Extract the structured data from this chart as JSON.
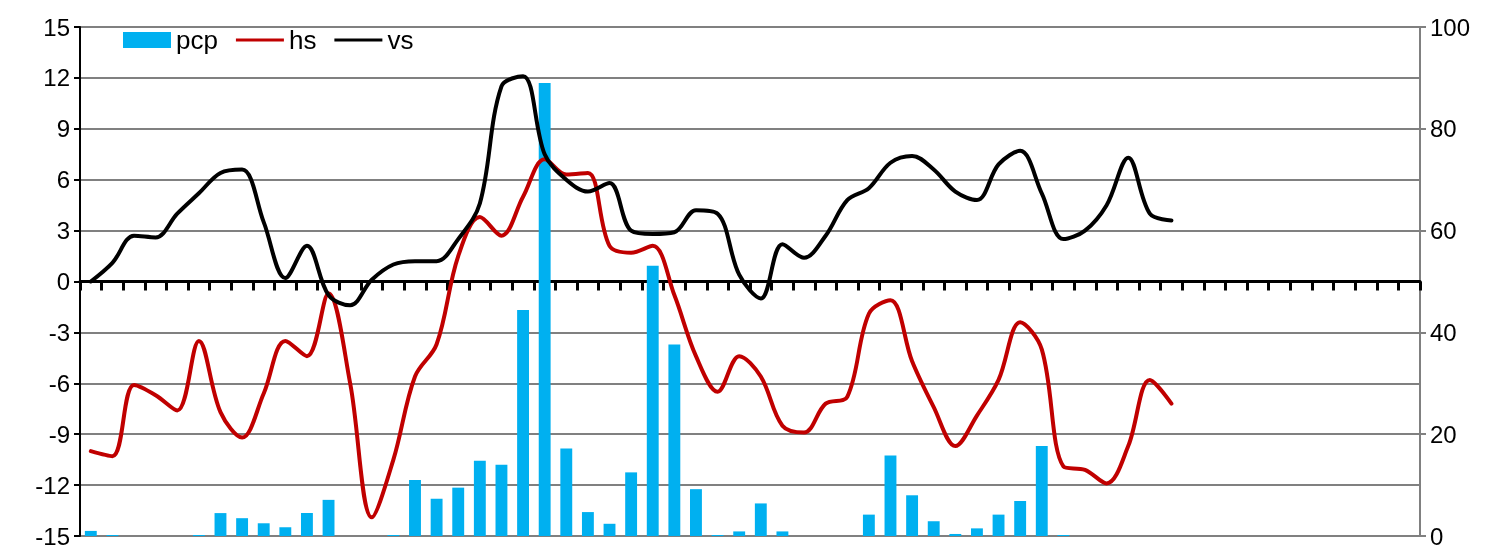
{
  "chart_data": {
    "type": "bar",
    "categories": [
      null,
      null,
      null,
      null,
      null,
      null,
      null,
      null,
      null,
      null,
      null,
      null,
      null,
      null,
      null,
      null,
      null,
      null,
      null,
      null,
      null,
      null,
      null,
      null,
      null,
      null,
      null,
      null,
      null,
      null,
      null,
      null,
      null,
      null,
      null,
      null,
      null,
      null,
      null,
      null,
      null,
      null,
      null,
      null,
      null,
      null,
      null,
      null,
      null,
      null,
      null,
      null,
      null,
      null,
      null,
      null,
      null,
      null,
      null,
      null,
      null,
      null
    ],
    "series": [
      {
        "name": "pcp",
        "axis": "y2",
        "color": "#00b0f0",
        "values": [
          1,
          0.2,
          0,
          0,
          0,
          0.2,
          4.5,
          3.5,
          2.5,
          1.7,
          4.5,
          7.1,
          0,
          0,
          0.2,
          11,
          7.3,
          9.5,
          14.8,
          14,
          44.4,
          89,
          17.2,
          4.7,
          2.4,
          12.5,
          53.1,
          37.6,
          9.2,
          0.2,
          0.9,
          6.4,
          0.9,
          0,
          0,
          0,
          4.2,
          15.8,
          8,
          2.9,
          0.4,
          1.5,
          4.2,
          6.9,
          17.7,
          0.2,
          null,
          null,
          null,
          null,
          null,
          null,
          null,
          null,
          null,
          null,
          null,
          null,
          null,
          null,
          null,
          null
        ]
      },
      {
        "name": "hs",
        "type": "line",
        "color": "#c00000",
        "values": [
          -10,
          -10.3,
          -6.1,
          -6.7,
          -7.6,
          -3.5,
          -7.7,
          -9.2,
          -6.6,
          -3.5,
          -4.4,
          -0.7,
          -6,
          -13.9,
          -10.5,
          -5.6,
          -3.7,
          1.5,
          3.8,
          2.7,
          5,
          7.2,
          6.3,
          6.4,
          2.1,
          1.7,
          2.1,
          -0.8,
          -4.4,
          -6.5,
          -4.4,
          -5.6,
          -8.5,
          -8.9,
          -7.2,
          -6.8,
          -1.9,
          -1.1,
          -4.7,
          -7.4,
          -9.7,
          -7.9,
          -5.8,
          -2.4,
          -4,
          -10.9,
          -11.1,
          -11.9,
          -9.7,
          -5.8,
          -7.2,
          null,
          null,
          null,
          null,
          null,
          null,
          null,
          null,
          null,
          null,
          null
        ]
      },
      {
        "name": "vs",
        "type": "line",
        "color": "#000000",
        "values": [
          0,
          1.1,
          2.7,
          2.6,
          4,
          5.2,
          6.4,
          6.6,
          3.5,
          0.2,
          2.1,
          -0.8,
          -1.4,
          0.1,
          1,
          1.2,
          1.2,
          2.5,
          4.6,
          11.5,
          12.1,
          7.5,
          6,
          5.3,
          5.8,
          3,
          2.8,
          2.9,
          4.2,
          4,
          0.4,
          -1,
          2.2,
          1.4,
          2.7,
          4.8,
          5.5,
          7,
          7.4,
          6.6,
          5.3,
          4.8,
          6.9,
          7.7,
          5.2,
          2.5,
          3,
          4.5,
          7.3,
          4,
          3.6,
          null,
          null,
          null,
          null,
          null,
          null,
          null,
          null,
          null,
          null,
          null
        ]
      }
    ],
    "ylim": [
      -15,
      15
    ],
    "yticks": [
      -15,
      -12,
      -9,
      -6,
      -3,
      0,
      3,
      6,
      9,
      12,
      15
    ],
    "y2lim": [
      0,
      100
    ],
    "y2ticks": [
      0,
      20,
      40,
      60,
      80,
      100
    ],
    "grid": "y",
    "legend": "top left",
    "marker": "none",
    "tick_labels": "y"
  }
}
